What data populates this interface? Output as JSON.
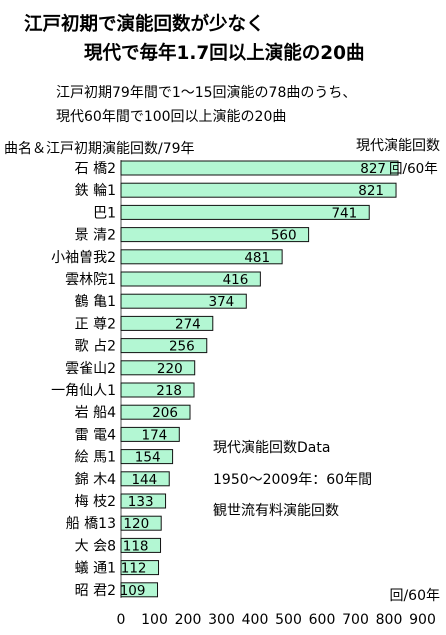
{
  "chart_data": {
    "type": "bar",
    "orientation": "horizontal",
    "title_lines": [
      "江戸初期で演能回数が少なく",
      "現代で毎年1.7回以上演能の20曲"
    ],
    "subtitle_lines": [
      "江戸初期79年間で1～15回演能の78曲のうち、",
      "現代60年間で100回以上演能の20曲"
    ],
    "category_axis_label": "曲名＆江戸初期演能回数/79年",
    "value_axis_top_label": "現代演能回数",
    "value_axis_unit_label": "回/60年",
    "first_value_suffix": "回/60年",
    "categories": [
      "石 橋2",
      "鉄 輪1",
      "巴1",
      "景 清2",
      "小袖曽我2",
      "雲林院1",
      "鶴 亀1",
      "正 尊2",
      "歌 占2",
      "雲雀山2",
      "一角仙人1",
      "岩 船4",
      "雷 電4",
      "絵 馬1",
      "錦 木4",
      "梅 枝2",
      "船 橋13",
      "大 会8",
      "蟻 通1",
      "昭 君2"
    ],
    "values": [
      827,
      821,
      741,
      560,
      481,
      416,
      374,
      274,
      256,
      220,
      218,
      206,
      174,
      154,
      144,
      133,
      120,
      118,
      112,
      109
    ],
    "xlim": [
      0,
      900
    ],
    "xticks": [
      0,
      100,
      200,
      300,
      400,
      500,
      600,
      700,
      800,
      900
    ],
    "grid": false,
    "bar_color": "#b3f7d3",
    "bar_border": "#111111",
    "notes": [
      "現代演能回数Data",
      "1950～2009年：60年間",
      "観世流有料演能回数"
    ]
  }
}
